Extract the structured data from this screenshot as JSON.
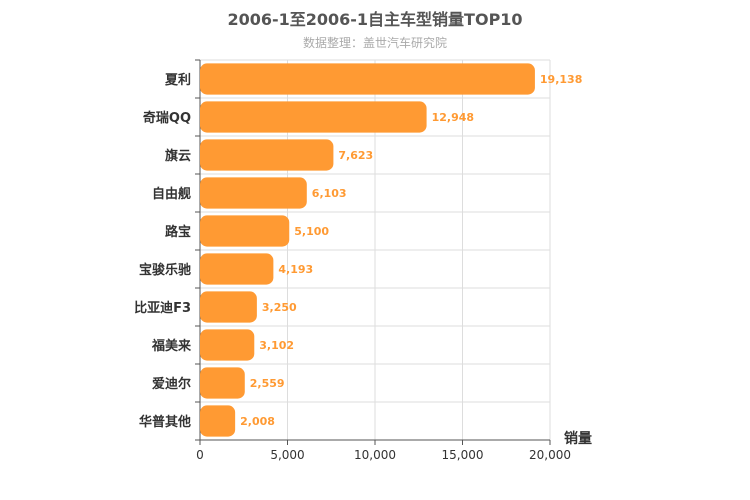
{
  "chart_data": {
    "type": "bar",
    "orientation": "horizontal",
    "title": "2006-1至2006-1自主车型销量TOP10",
    "subtitle": "数据整理：盖世汽车研究院",
    "xlabel": "销量",
    "ylabel": "",
    "categories": [
      "夏利",
      "奇瑞QQ",
      "旗云",
      "自由舰",
      "路宝",
      "宝骏乐驰",
      "比亚迪F3",
      "福美来",
      "爱迪尔",
      "华普其他"
    ],
    "values": [
      19138,
      12948,
      7623,
      6103,
      5100,
      4193,
      3250,
      3102,
      2559,
      2008
    ],
    "value_labels": [
      "19,138",
      "12,948",
      "7,623",
      "6,103",
      "5,100",
      "4,193",
      "3,250",
      "3,102",
      "2,559",
      "2,008"
    ],
    "xlim": [
      0,
      20000
    ],
    "xticks": [
      0,
      5000,
      10000,
      15000,
      20000
    ],
    "xtick_labels": [
      "0",
      "5,000",
      "10,000",
      "15,000",
      "20,000"
    ],
    "grid": true,
    "bar_color": "#ff9a33",
    "value_label_color": "#ff9a33"
  }
}
